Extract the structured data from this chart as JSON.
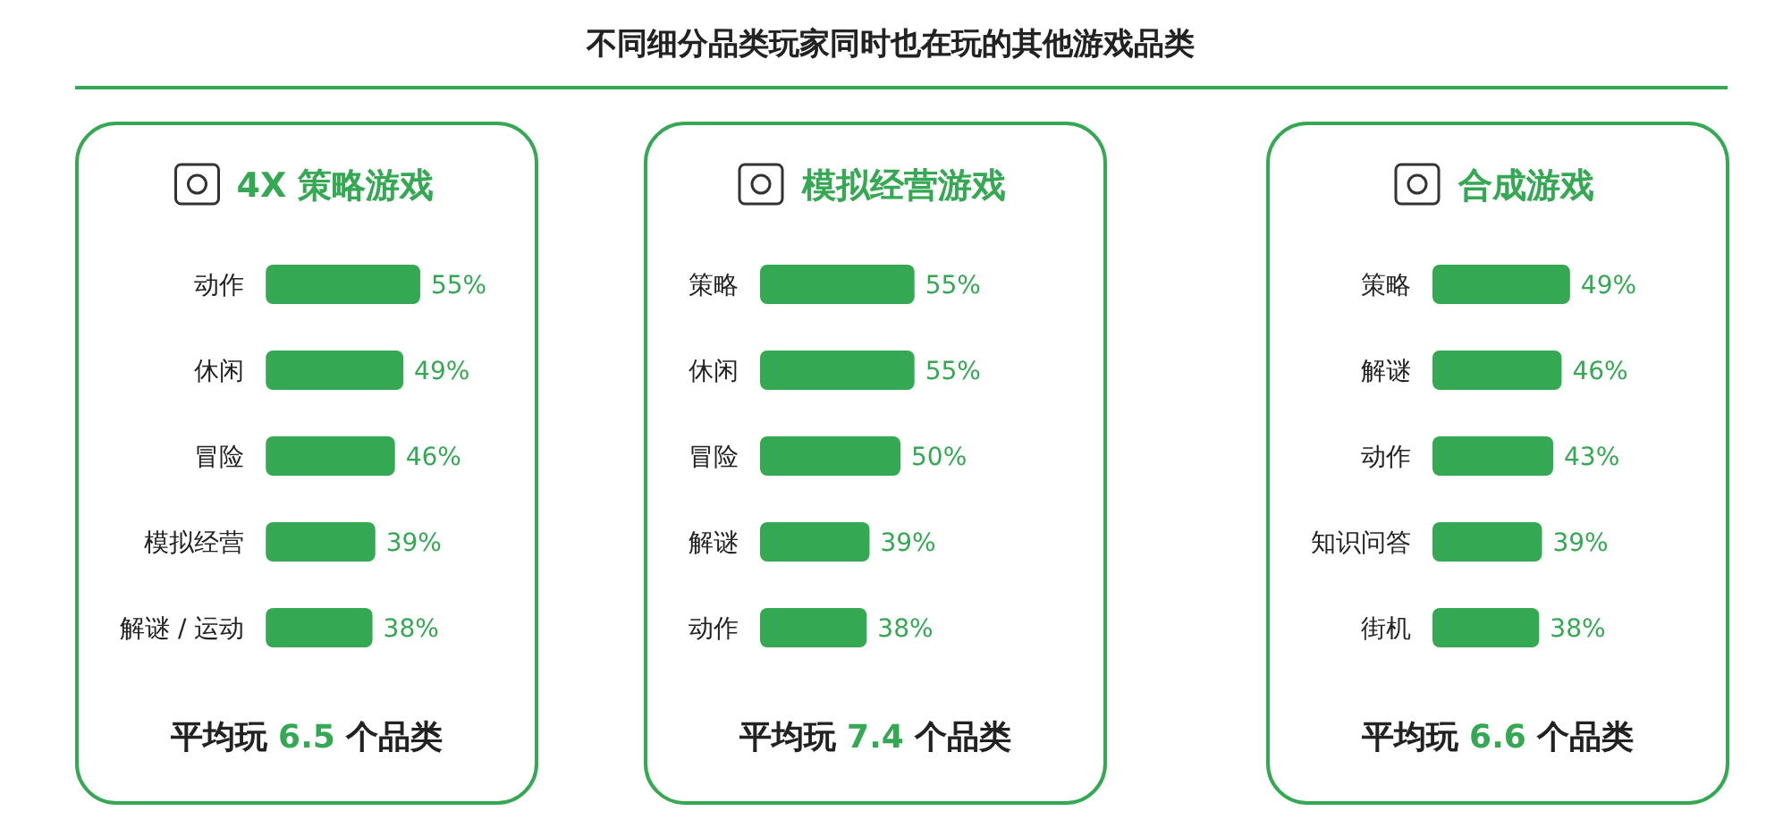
{
  "chart_data": [
    {
      "type": "other",
      "title": "不同细分品类玩家同时也在玩的其他游戏品类"
    },
    {
      "type": "bar",
      "orientation": "horizontal",
      "subtitle": "4X 策略游戏",
      "categories": [
        "动作",
        "休闲",
        "冒险",
        "模拟经营",
        "解谜 / 运动"
      ],
      "values": [
        55,
        49,
        46,
        39,
        38
      ],
      "value_labels": [
        "55%",
        "49%",
        "46%",
        "39%",
        "38%"
      ],
      "color": "#34a853",
      "annotations": [
        "平均玩 **6.5** 个品类"
      ]
    },
    {
      "type": "bar",
      "orientation": "horizontal",
      "subtitle": "模拟经营游戏",
      "categories": [
        "策略",
        "休闲",
        "冒险",
        "解谜",
        "动作"
      ],
      "values": [
        55,
        55,
        50,
        39,
        38
      ],
      "value_labels": [
        "55%",
        "55%",
        "50%",
        "39%",
        "38%"
      ],
      "color": "#34a853",
      "annotations": [
        "平均玩 **7.4** 个品类"
      ]
    },
    {
      "type": "bar",
      "orientation": "horizontal",
      "subtitle": "合成游戏",
      "categories": [
        "策略",
        "解谜",
        "动作",
        "知识问答",
        "街机"
      ],
      "values": [
        49,
        46,
        43,
        39,
        38
      ],
      "value_labels": [
        "49%",
        "46%",
        "43%",
        "39%",
        "38%"
      ],
      "color": "#34a853",
      "annotations": [
        "平均玩 **6.6** 个品类"
      ]
    }
  ]
}
